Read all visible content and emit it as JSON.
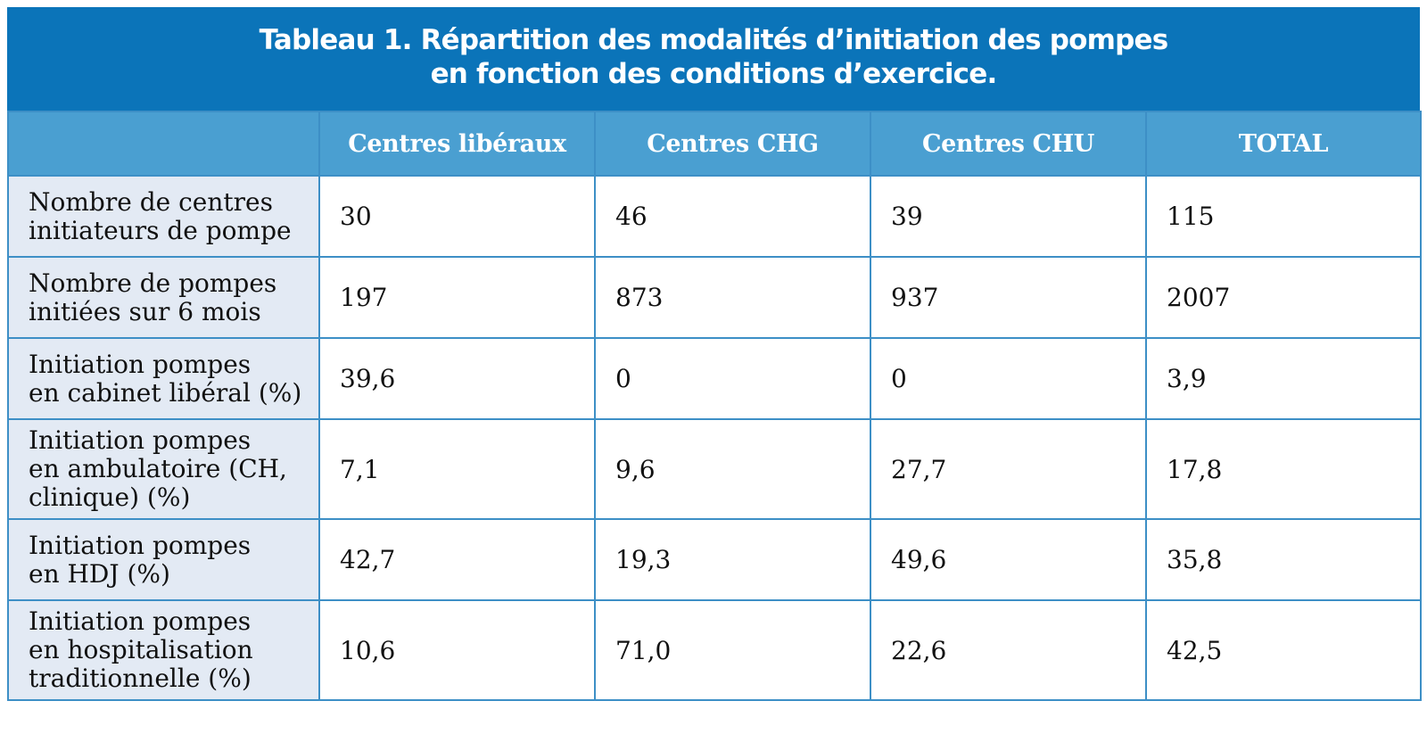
{
  "title": {
    "line1": "Tableau 1. Répartition des modalités d’initiation des pompes",
    "line2": "en fonction des conditions d’exercice."
  },
  "table": {
    "columns": [
      "",
      "Centres libéraux",
      "Centres CHG",
      "Centres CHU",
      "TOTAL"
    ],
    "rows": [
      {
        "label_lines": [
          "Nombre de centres",
          "initiateurs de pompe"
        ],
        "values": [
          "30",
          "46",
          "39",
          "115"
        ]
      },
      {
        "label_lines": [
          "Nombre de pompes",
          "initiées sur 6 mois"
        ],
        "values": [
          "197",
          "873",
          "937",
          "2007"
        ]
      },
      {
        "label_lines": [
          "Initiation pompes",
          "en cabinet libéral (%)"
        ],
        "values": [
          "39,6",
          "0",
          "0",
          "3,9"
        ]
      },
      {
        "label_lines": [
          "Initiation pompes",
          "en ambulatoire (CH,",
          "clinique) (%)"
        ],
        "values": [
          "7,1",
          "9,6",
          "27,7",
          "17,8"
        ]
      },
      {
        "label_lines": [
          "Initiation pompes",
          "en HDJ (%)"
        ],
        "values": [
          "42,7",
          "19,3",
          "49,6",
          "35,8"
        ]
      },
      {
        "label_lines": [
          "Initiation pompes",
          "en hospitalisation",
          "traditionnelle (%)"
        ],
        "values": [
          "10,6",
          "71,0",
          "22,6",
          "42,5"
        ]
      }
    ]
  },
  "colors": {
    "title_background": "#0b74b9",
    "header_background": "#4a9fd1",
    "row_label_background": "#e3eaf4",
    "border": "#3d8fc6"
  }
}
